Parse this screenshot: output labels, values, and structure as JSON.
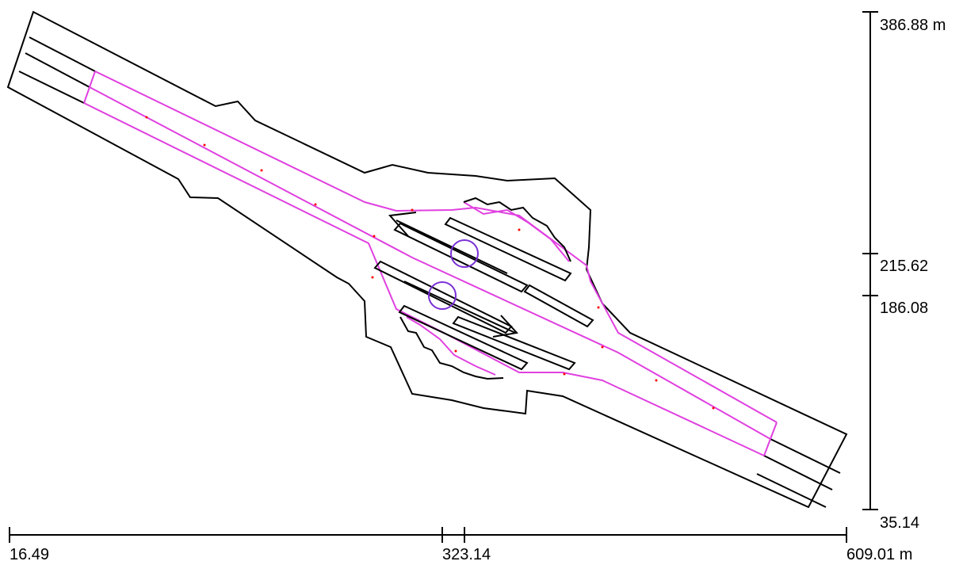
{
  "scale_x": {
    "unit": "m",
    "labels": [
      "16.49",
      "323.14",
      "609.01 m"
    ]
  },
  "scale_y": {
    "unit": "m",
    "labels": [
      "386.88 m",
      "215.62",
      "186.08",
      "35.14"
    ]
  },
  "colors": {
    "outline": "#000000",
    "lane": "#e040e0",
    "marker": "#7a2fd6",
    "dot": "#ff0000"
  },
  "markers": [
    "circle-marker",
    "circle-marker"
  ],
  "arrows": [
    "arrow-left",
    "arrow-right"
  ]
}
